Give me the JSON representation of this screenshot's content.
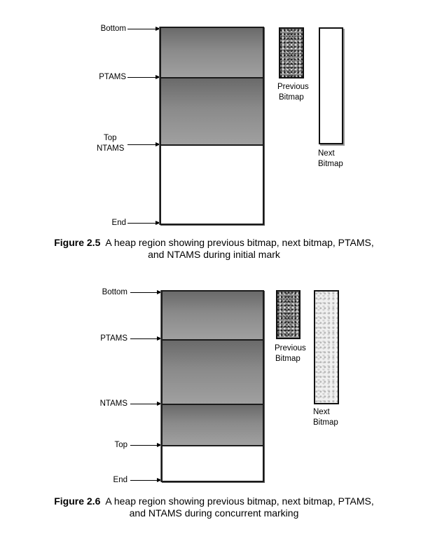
{
  "figure_2_5": {
    "labels": {
      "bottom": "Bottom",
      "ptams": "PTAMS",
      "top": "Top",
      "ntams": "NTAMS",
      "end": "End",
      "previous_bitmap_line1": "Previous",
      "previous_bitmap_line2": "Bitmap",
      "next_bitmap_line1": "Next",
      "next_bitmap_line2": "Bitmap"
    },
    "caption": {
      "number": "Figure 2.5",
      "line1": "A heap region showing previous bitmap, next bitmap, PTAMS,",
      "line2": "and NTAMS during initial mark"
    }
  },
  "figure_2_6": {
    "labels": {
      "bottom": "Bottom",
      "ptams": "PTAMS",
      "ntams": "NTAMS",
      "top": "Top",
      "end": "End",
      "previous_bitmap_line1": "Previous",
      "previous_bitmap_line2": "Bitmap",
      "next_bitmap_line1": "Next",
      "next_bitmap_line2": "Bitmap"
    },
    "caption": {
      "number": "Figure 2.6",
      "line1": "A heap region showing previous bitmap, next bitmap, PTAMS,",
      "line2": "and NTAMS during concurrent marking"
    }
  }
}
